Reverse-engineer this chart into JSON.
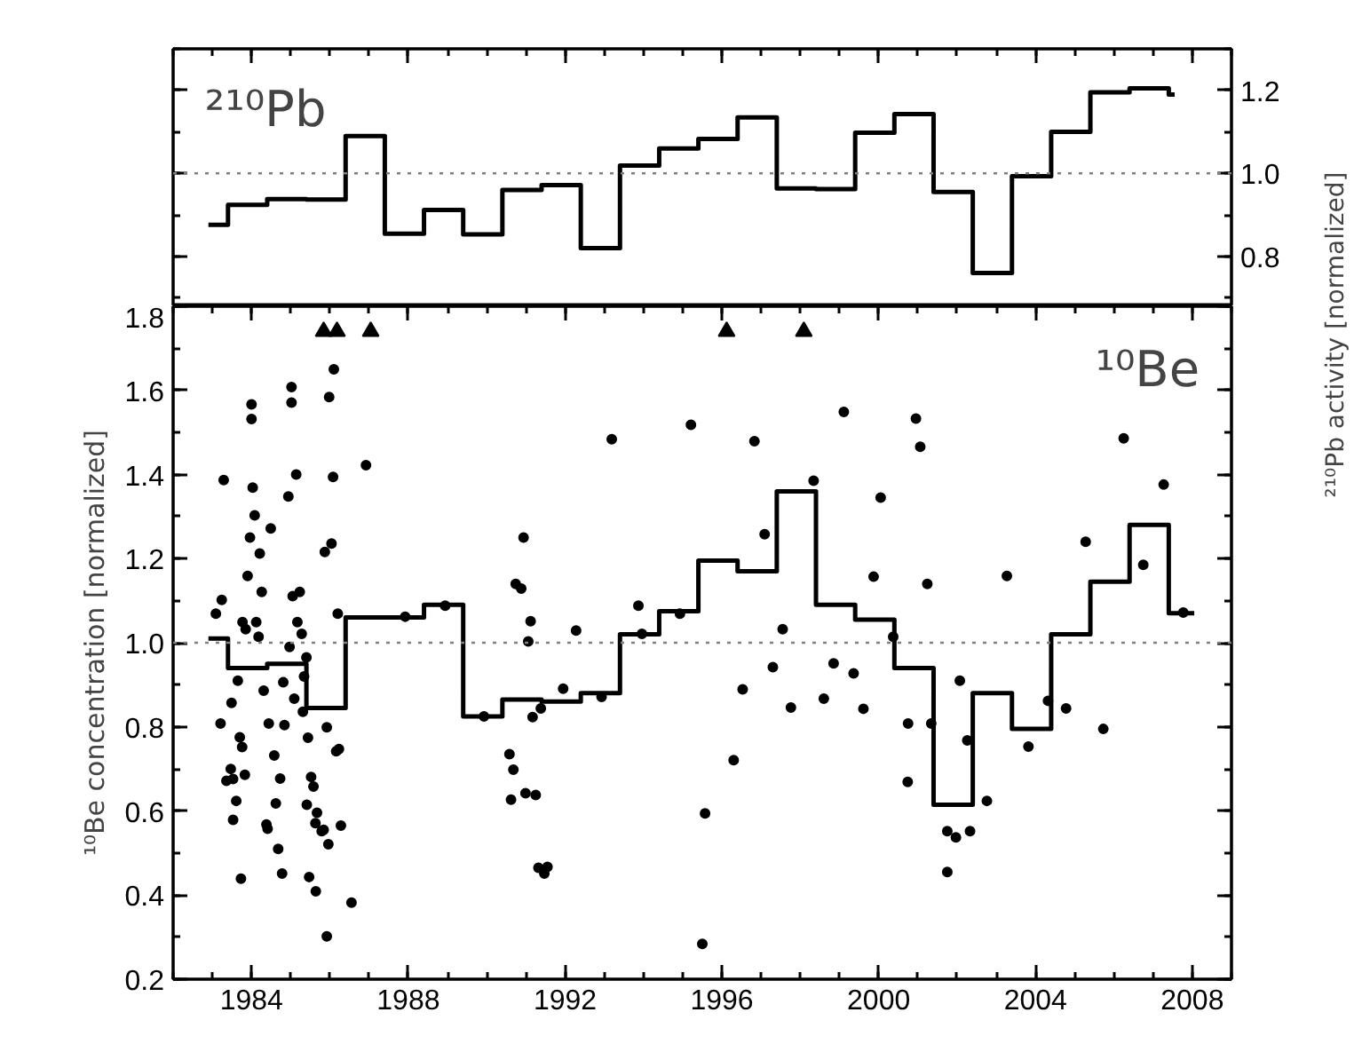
{
  "chart_data": [
    {
      "type": "step",
      "annotations": [
        "²¹⁰Pb"
      ],
      "ylabel": "²¹⁰Pb activity [normalized]",
      "xlim": [
        1982,
        2009
      ],
      "ylim": [
        0.68,
        1.3
      ],
      "xticks": [
        1984,
        1988,
        1992,
        1996,
        2000,
        2004,
        2008
      ],
      "yticks": [
        {
          "value": 0.8,
          "label": "0.8"
        },
        {
          "value": 1.0,
          "label": "1.0"
        },
        {
          "value": 1.2,
          "label": "1.2"
        }
      ],
      "tick_labels": "y",
      "ref_lines": [
        {
          "axis": "y",
          "value": 1.0,
          "color": "#808080",
          "line_style": "dotted"
        }
      ],
      "series": [
        {
          "color": "#000000",
          "x": [
            1982.9,
            1983.4,
            1984.4,
            1985.4,
            1986.4,
            1987.4,
            1988.4,
            1989.4,
            1990.4,
            1991.4,
            1992.4,
            1993.4,
            1994.4,
            1995.4,
            1996.4,
            1997.4,
            1998.4,
            1999.4,
            2000.4,
            2001.4,
            2002.4,
            2003.4,
            2004.4,
            2005.4,
            2006.4,
            2007.4,
            2007.55
          ],
          "values": [
            0.876,
            0.924,
            0.938,
            0.937,
            1.09,
            0.855,
            0.912,
            0.853,
            0.96,
            0.972,
            0.82,
            1.019,
            1.06,
            1.083,
            1.135,
            0.964,
            0.962,
            1.098,
            1.143,
            0.955,
            0.76,
            0.993,
            1.1,
            1.195,
            1.205,
            1.19,
            1.19
          ]
        }
      ]
    },
    {
      "type": "step",
      "annotations": [
        "¹⁰Be"
      ],
      "ylabel": "¹⁰Be concentration [normalized]",
      "xlim": [
        1982,
        2009
      ],
      "ylim": [
        0.2,
        1.8
      ],
      "xticks": [
        1984,
        1988,
        1992,
        1996,
        2000,
        2004,
        2008
      ],
      "yticks": [
        {
          "value": 0.2,
          "label": "0.2"
        },
        {
          "value": 0.4,
          "label": "0.4"
        },
        {
          "value": 0.6,
          "label": "0.6"
        },
        {
          "value": 0.8,
          "label": "0.8"
        },
        {
          "value": 1.0,
          "label": "1.0"
        },
        {
          "value": 1.2,
          "label": "1.2"
        },
        {
          "value": 1.4,
          "label": "1.4"
        },
        {
          "value": 1.6,
          "label": "1.6"
        },
        {
          "value": 1.8,
          "label": "1.8"
        }
      ],
      "ref_lines": [
        {
          "axis": "y",
          "value": 1.0,
          "color": "#808080",
          "line_style": "dotted"
        }
      ],
      "series": [
        {
          "color": "#000000",
          "x": [
            1982.9,
            1983.4,
            1984.4,
            1985.4,
            1986.4,
            1987.4,
            1988.4,
            1989.4,
            1990.4,
            1991.4,
            1992.4,
            1993.4,
            1994.4,
            1995.4,
            1996.4,
            1997.4,
            1998.4,
            1999.4,
            2000.4,
            2001.4,
            2002.4,
            2003.4,
            2004.4,
            2005.4,
            2006.4,
            2007.4,
            2008.05
          ],
          "values": [
            1.01,
            0.94,
            0.95,
            0.845,
            1.06,
            1.06,
            1.09,
            0.825,
            0.865,
            0.86,
            0.88,
            1.02,
            1.075,
            1.195,
            1.17,
            1.36,
            1.09,
            1.055,
            0.94,
            0.615,
            0.88,
            0.795,
            1.02,
            1.145,
            1.28,
            1.07,
            1.07
          ]
        },
        {
          "type": "scatter",
          "marker": "triangle",
          "color": "#000000",
          "x": [
            1985.84,
            1986.18,
            1987.04,
            1996.12,
            1998.09
          ],
          "values": [
            1.74,
            1.74,
            1.74,
            1.74,
            1.74
          ]
        },
        {
          "type": "scatter",
          "marker": "circle",
          "color": "#000000",
          "x": [
            1983.29,
            1983.09,
            1983.24,
            1984.0,
            1984.0,
            1984.03,
            1984.08,
            1983.96,
            1984.21,
            1983.9,
            1984.26,
            1983.77,
            1983.85,
            1984.12,
            1984.18,
            1984.49,
            1985.02,
            1985.02,
            1985.14,
            1984.94,
            1985.05,
            1985.23,
            1985.17,
            1985.28,
            1984.97,
            1985.98,
            1986.1,
            1986.08,
            1986.04,
            1985.87,
            1986.2,
            1986.92,
            1987.92,
            1988.94,
            1985.4,
            1985.34,
            1990.94,
            1990.74,
            1990.88,
            1991.12,
            1991.06,
            1992.28,
            1993.19,
            1995.21,
            1993.87,
            1993.96,
            1994.93,
            1996.83,
            1999.11,
            2000.95,
            2001.06,
            1997.09,
            1998.34,
            2000.05,
            1999.87,
            2001.24,
            2003.27,
            2005.28,
            2006.75,
            2006.25,
            2007.27,
            2007.77,
            1997.55,
            2000.37,
            1997.3,
            1998.85,
            1999.36,
            1983.65,
            1984.31,
            1984.81,
            1983.49,
            1985.09,
            1983.21,
            1984.44,
            1984.84,
            1985.31,
            1983.7,
            1983.76,
            1985.44,
            1985.92,
            1984.58,
            1983.47,
            1983.36,
            1983.53,
            1983.83,
            1984.73,
            1985.52,
            1985.58,
            1986.16,
            1986.23,
            1983.61,
            1984.62,
            1985.41,
            1985.67,
            1983.53,
            1984.38,
            1984.41,
            1985.63,
            1985.79,
            1985.84,
            1986.28,
            1984.68,
            1985.96,
            1983.73,
            1984.78,
            1985.47,
            1985.64,
            1985.92,
            1986.55,
            1990.58,
            1990.68,
            1990.62,
            1990.99,
            1991.25,
            1991.95,
            1989.93,
            1991.17,
            1991.38,
            1991.32,
            1991.47,
            1991.55,
            1992.93,
            1995.57,
            1995.5,
            1996.53,
            1997.76,
            1998.6,
            1999.61,
            2000.75,
            2001.34,
            2002.07,
            2002.26,
            1996.3,
            2000.74,
            2002.76,
            2001.75,
            2001.97,
            2002.33,
            2001.75,
            2004.32,
            2004.78,
            2003.82,
            2005.73
          ],
          "values": [
            1.387,
            1.069,
            1.102,
            1.567,
            1.532,
            1.369,
            1.303,
            1.25,
            1.212,
            1.159,
            1.121,
            1.049,
            1.032,
            1.049,
            1.014,
            1.272,
            1.608,
            1.571,
            1.4,
            1.348,
            1.111,
            1.121,
            1.049,
            1.021,
            0.99,
            1.584,
            1.65,
            1.394,
            1.236,
            1.216,
            1.069,
            1.422,
            1.062,
            1.088,
            0.965,
            0.92,
            1.25,
            1.14,
            1.129,
            1.051,
            1.003,
            1.029,
            1.484,
            1.518,
            1.088,
            1.021,
            1.069,
            1.479,
            1.549,
            1.533,
            1.466,
            1.258,
            1.385,
            1.345,
            1.157,
            1.14,
            1.159,
            1.24,
            1.185,
            1.486,
            1.376,
            1.072,
            1.032,
            1.014,
            0.942,
            0.951,
            0.927,
            0.91,
            0.886,
            0.906,
            0.857,
            0.867,
            0.808,
            0.808,
            0.804,
            0.836,
            0.775,
            0.752,
            0.774,
            0.799,
            0.732,
            0.7,
            0.672,
            0.676,
            0.686,
            0.677,
            0.681,
            0.658,
            0.742,
            0.747,
            0.624,
            0.618,
            0.615,
            0.596,
            0.579,
            0.568,
            0.558,
            0.571,
            0.552,
            0.555,
            0.565,
            0.51,
            0.521,
            0.439,
            0.451,
            0.443,
            0.409,
            0.302,
            0.382,
            0.735,
            0.698,
            0.627,
            0.642,
            0.638,
            0.891,
            0.825,
            0.823,
            0.844,
            0.465,
            0.451,
            0.467,
            0.871,
            0.594,
            0.284,
            0.889,
            0.846,
            0.867,
            0.843,
            0.808,
            0.808,
            0.91,
            0.768,
            0.721,
            0.669,
            0.624,
            0.552,
            0.537,
            0.552,
            0.455,
            0.862,
            0.844,
            0.753,
            0.795
          ]
        }
      ]
    }
  ]
}
